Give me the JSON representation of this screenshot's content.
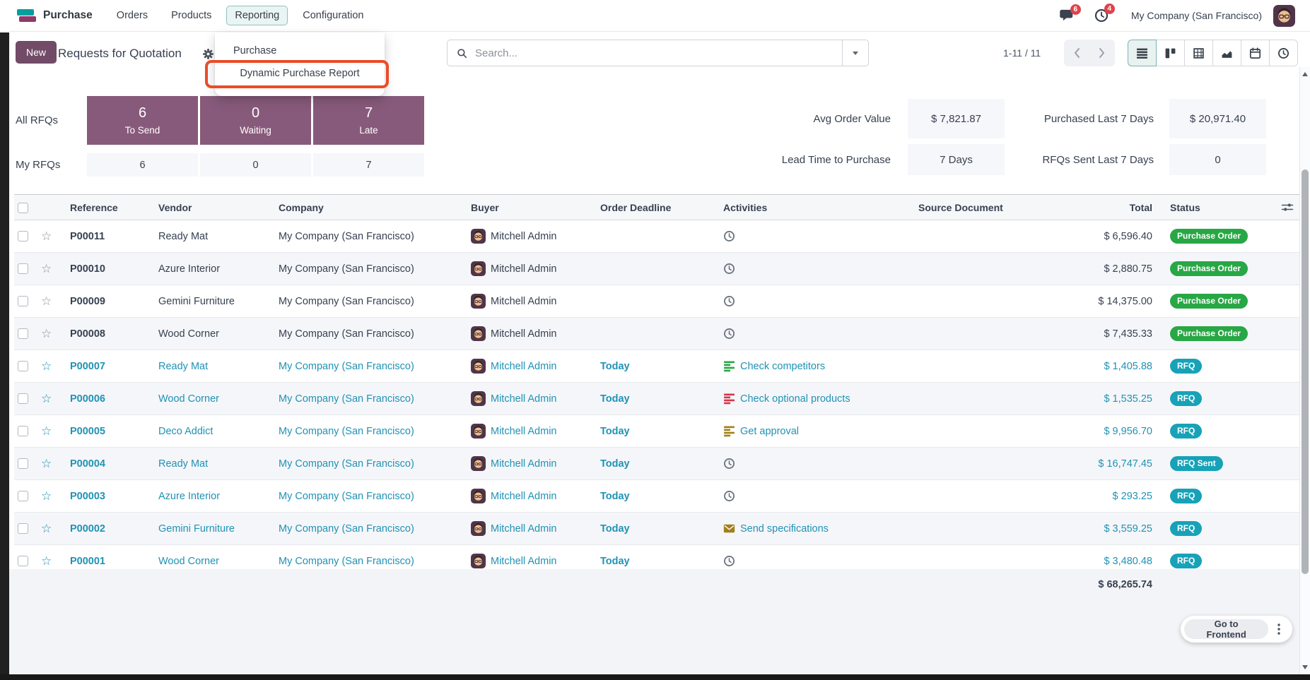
{
  "navbar": {
    "app_name": "Purchase",
    "menus": [
      {
        "label": "Orders",
        "active": false
      },
      {
        "label": "Products",
        "active": false
      },
      {
        "label": "Reporting",
        "active": true
      },
      {
        "label": "Configuration",
        "active": false
      }
    ],
    "messages_badge": "6",
    "activities_badge": "4",
    "user_company": "My Company (San Francisco)"
  },
  "reporting_menu": {
    "items": [
      {
        "label": "Purchase",
        "highlighted": false
      },
      {
        "label": "Dynamic Purchase Report",
        "highlighted": true
      }
    ]
  },
  "control_panel": {
    "new_button": "New",
    "title": "Requests for Quotation",
    "search_placeholder": "Search...",
    "pager": "1-11 / 11",
    "view_switcher": [
      "list",
      "kanban",
      "pivot",
      "graph",
      "calendar",
      "activity"
    ],
    "active_view": "list"
  },
  "dashboard": {
    "kpi_rows": [
      {
        "label": "All RFQs",
        "style": "solid",
        "cells": [
          {
            "value": "6",
            "caption": "To Send"
          },
          {
            "value": "0",
            "caption": "Waiting"
          },
          {
            "value": "7",
            "caption": "Late"
          }
        ]
      },
      {
        "label": "My RFQs",
        "style": "flat",
        "cells": [
          {
            "value": "6"
          },
          {
            "value": "0"
          },
          {
            "value": "7"
          }
        ]
      }
    ],
    "stats": [
      {
        "label": "Avg Order Value",
        "value": "$ 7,821.87"
      },
      {
        "label": "Purchased Last 7 Days",
        "value": "$ 20,971.40"
      },
      {
        "label": "Lead Time to Purchase",
        "value": "7 Days"
      },
      {
        "label": "RFQs Sent Last 7 Days",
        "value": "0"
      }
    ]
  },
  "table": {
    "columns": [
      "Reference",
      "Vendor",
      "Company",
      "Buyer",
      "Order Deadline",
      "Activities",
      "Source Document",
      "Total",
      "Status"
    ],
    "rows": [
      {
        "reference": "P00011",
        "vendor": "Ready Mat",
        "company": "My Company (San Francisco)",
        "buyer": "Mitchell Admin",
        "deadline": "",
        "activity": {
          "icon": "clock",
          "color": "gray",
          "label": ""
        },
        "source": "",
        "total": "$ 6,596.40",
        "status": "Purchase Order",
        "state": "po"
      },
      {
        "reference": "P00010",
        "vendor": "Azure Interior",
        "company": "My Company (San Francisco)",
        "buyer": "Mitchell Admin",
        "deadline": "",
        "activity": {
          "icon": "clock",
          "color": "gray",
          "label": ""
        },
        "source": "",
        "total": "$ 2,880.75",
        "status": "Purchase Order",
        "state": "po"
      },
      {
        "reference": "P00009",
        "vendor": "Gemini Furniture",
        "company": "My Company (San Francisco)",
        "buyer": "Mitchell Admin",
        "deadline": "",
        "activity": {
          "icon": "clock",
          "color": "gray",
          "label": ""
        },
        "source": "",
        "total": "$ 14,375.00",
        "status": "Purchase Order",
        "state": "po"
      },
      {
        "reference": "P00008",
        "vendor": "Wood Corner",
        "company": "My Company (San Francisco)",
        "buyer": "Mitchell Admin",
        "deadline": "",
        "activity": {
          "icon": "clock",
          "color": "gray",
          "label": ""
        },
        "source": "",
        "total": "$ 7,435.33",
        "status": "Purchase Order",
        "state": "po"
      },
      {
        "reference": "P00007",
        "vendor": "Ready Mat",
        "company": "My Company (San Francisco)",
        "buyer": "Mitchell Admin",
        "deadline": "Today",
        "activity": {
          "icon": "list",
          "color": "green",
          "label": "Check competitors"
        },
        "source": "",
        "total": "$ 1,405.88",
        "status": "RFQ",
        "state": "rfq"
      },
      {
        "reference": "P00006",
        "vendor": "Wood Corner",
        "company": "My Company (San Francisco)",
        "buyer": "Mitchell Admin",
        "deadline": "Today",
        "activity": {
          "icon": "list",
          "color": "red",
          "label": "Check optional products"
        },
        "source": "",
        "total": "$ 1,535.25",
        "status": "RFQ",
        "state": "rfq"
      },
      {
        "reference": "P00005",
        "vendor": "Deco Addict",
        "company": "My Company (San Francisco)",
        "buyer": "Mitchell Admin",
        "deadline": "Today",
        "activity": {
          "icon": "list",
          "color": "olive",
          "label": "Get approval"
        },
        "source": "",
        "total": "$ 9,956.70",
        "status": "RFQ",
        "state": "rfq"
      },
      {
        "reference": "P00004",
        "vendor": "Ready Mat",
        "company": "My Company (San Francisco)",
        "buyer": "Mitchell Admin",
        "deadline": "Today",
        "activity": {
          "icon": "clock",
          "color": "gray",
          "label": ""
        },
        "source": "",
        "total": "$ 16,747.45",
        "status": "RFQ Sent",
        "state": "rfq"
      },
      {
        "reference": "P00003",
        "vendor": "Azure Interior",
        "company": "My Company (San Francisco)",
        "buyer": "Mitchell Admin",
        "deadline": "Today",
        "activity": {
          "icon": "clock",
          "color": "gray",
          "label": ""
        },
        "source": "",
        "total": "$ 293.25",
        "status": "RFQ",
        "state": "rfq"
      },
      {
        "reference": "P00002",
        "vendor": "Gemini Furniture",
        "company": "My Company (San Francisco)",
        "buyer": "Mitchell Admin",
        "deadline": "Today",
        "activity": {
          "icon": "envelope",
          "color": "olive",
          "label": "Send specifications"
        },
        "source": "",
        "total": "$ 3,559.25",
        "status": "RFQ",
        "state": "rfq"
      },
      {
        "reference": "P00001",
        "vendor": "Wood Corner",
        "company": "My Company (San Francisco)",
        "buyer": "Mitchell Admin",
        "deadline": "Today",
        "activity": {
          "icon": "clock",
          "color": "gray",
          "label": ""
        },
        "source": "",
        "total": "$ 3,480.48",
        "status": "RFQ",
        "state": "rfq"
      }
    ],
    "footer_total": "$ 68,265.74"
  },
  "floating": {
    "goto_frontend": "Go to Frontend"
  },
  "colors": {
    "brand_purple": "#714B67",
    "kpi_purple": "#875A7B",
    "accent_teal": "#017E84",
    "link_teal": "#2092B5",
    "badge_green": "#28A745",
    "badge_teal": "#17A2B8",
    "badge_red": "#E0434C",
    "today_gold": "#BE8A1D",
    "highlight_orange": "#EB4C27",
    "logo_teal": "#00A09D",
    "logo_magenta": "#8F3A6B"
  }
}
